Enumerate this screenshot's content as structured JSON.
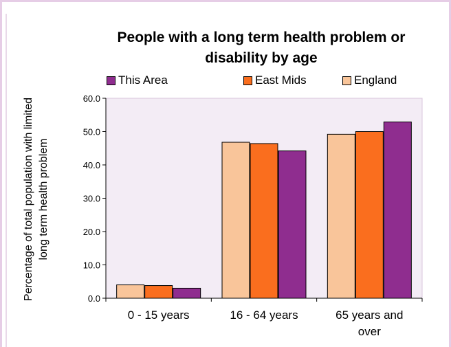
{
  "chart_data": {
    "type": "bar",
    "title_lines": [
      "People with a long term health problem or",
      "disability by age"
    ],
    "ylabel_lines": [
      "Percentage of total population with limited",
      "long term health problem"
    ],
    "xlabel": "",
    "categories": [
      [
        "0 - 15 years"
      ],
      [
        "16 - 64 years"
      ],
      [
        "65 years and",
        "over"
      ]
    ],
    "series": [
      {
        "name": "England",
        "color": "#f9c59a",
        "values": [
          4.0,
          46.8,
          49.2
        ]
      },
      {
        "name": "East Mids",
        "color": "#fa6e1e",
        "values": [
          3.8,
          46.4,
          50.0
        ]
      },
      {
        "name": "This Area",
        "color": "#8f2d8f",
        "values": [
          3.0,
          44.2,
          52.9
        ]
      }
    ],
    "legend_order": [
      "This Area",
      "East Mids",
      "England"
    ],
    "ylim": [
      0,
      60
    ],
    "yticks": [
      "0.0",
      "10.0",
      "20.0",
      "30.0",
      "40.0",
      "50.0",
      "60.0"
    ],
    "grid": false,
    "legend_position": "top",
    "plot_background": "#f3ecf5"
  }
}
